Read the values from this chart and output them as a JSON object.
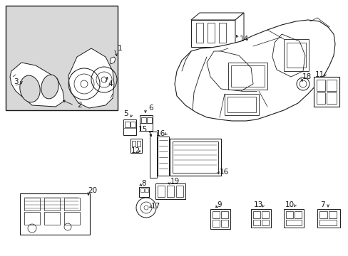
{
  "bg_color": "#ffffff",
  "line_color": "#1a1a1a",
  "gray_fill": "#d8d8d8",
  "figsize": [
    4.89,
    3.6
  ],
  "dpi": 100
}
